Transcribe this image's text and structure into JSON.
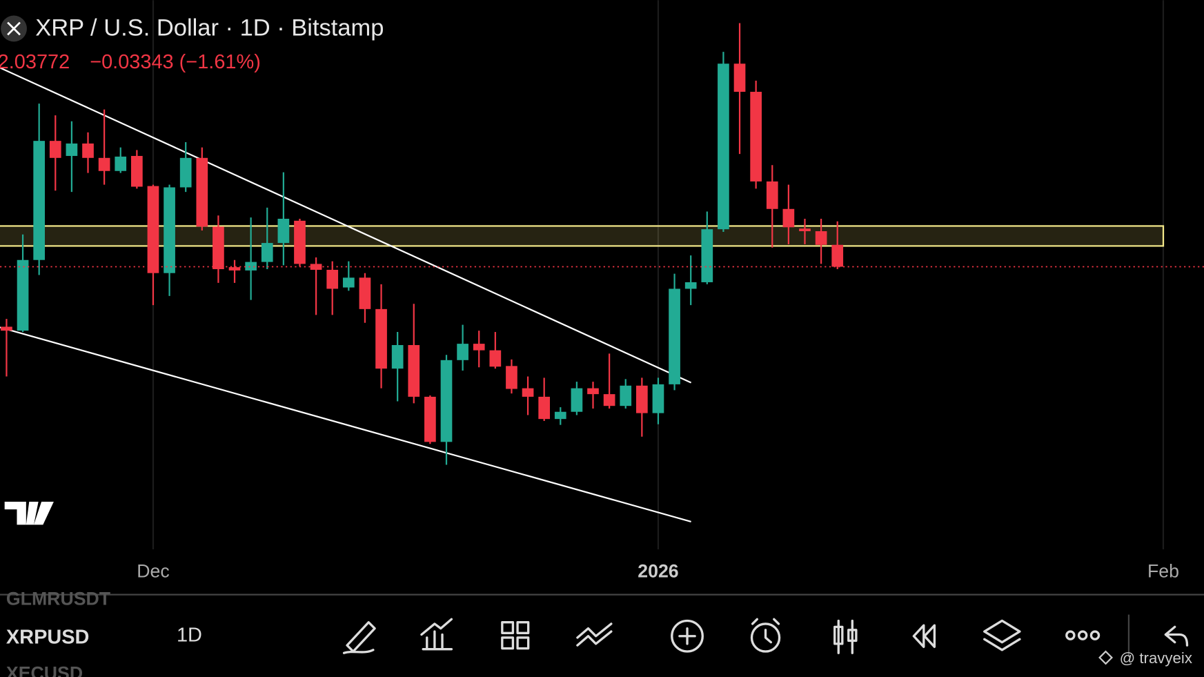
{
  "header": {
    "title": "XRP / U.S. Dollar · 1D · Bitstamp",
    "change": "−0.03343 (−1.61%)"
  },
  "chart_data": {
    "type": "candlestick",
    "up_color": "#22ab94",
    "down_color": "#f23645",
    "open": [
      1.946,
      1.94,
      2.048,
      2.23,
      2.207,
      2.226,
      2.204,
      2.184,
      2.207,
      2.161,
      2.028,
      2.159,
      2.204,
      2.099,
      2.037,
      2.032,
      2.045,
      2.074,
      2.108,
      2.042,
      2.033,
      2.006,
      2.021,
      1.973,
      1.882,
      1.918,
      1.839,
      1.77,
      1.895,
      1.92,
      1.91,
      1.886,
      1.852,
      1.839,
      1.805,
      1.816,
      1.852,
      1.843,
      1.825,
      1.856,
      1.814,
      1.858,
      2.004,
      2.014,
      2.095,
      2.348,
      2.305,
      2.168,
      2.126,
      2.096,
      2.092,
      2.07115
    ],
    "high": [
      1.958,
      2.087,
      2.287,
      2.269,
      2.26,
      2.243,
      2.278,
      2.22,
      2.216,
      2.163,
      2.163,
      2.228,
      2.22,
      2.116,
      2.048,
      2.113,
      2.128,
      2.182,
      2.111,
      2.052,
      2.046,
      2.046,
      2.028,
      2.011,
      1.938,
      1.981,
      1.841,
      1.903,
      1.949,
      1.94,
      1.938,
      1.896,
      1.87,
      1.868,
      1.823,
      1.862,
      1.862,
      1.905,
      1.866,
      1.868,
      1.868,
      2.027,
      2.055,
      2.122,
      2.366,
      2.41,
      2.322,
      2.193,
      2.163,
      2.111,
      2.111,
      2.107
    ],
    "low": [
      1.87,
      1.938,
      2.025,
      2.154,
      2.152,
      2.181,
      2.163,
      2.181,
      2.157,
      1.979,
      1.993,
      2.152,
      2.093,
      2.013,
      2.013,
      1.987,
      2.034,
      2.04,
      2.038,
      1.964,
      1.964,
      2.001,
      1.952,
      1.852,
      1.832,
      1.829,
      1.767,
      1.735,
      1.879,
      1.884,
      1.882,
      1.844,
      1.811,
      1.802,
      1.796,
      1.811,
      1.821,
      1.821,
      1.821,
      1.778,
      1.797,
      1.849,
      1.979,
      2.011,
      2.091,
      2.21,
      2.157,
      2.067,
      2.072,
      2.072,
      2.042,
      2.034
    ],
    "close": [
      1.94,
      2.048,
      2.23,
      2.204,
      2.226,
      2.204,
      2.184,
      2.206,
      2.16,
      2.028,
      2.159,
      2.204,
      2.099,
      2.034,
      2.032,
      2.045,
      2.074,
      2.111,
      2.042,
      2.033,
      2.004,
      2.021,
      1.973,
      1.882,
      1.918,
      1.839,
      1.77,
      1.895,
      1.92,
      1.91,
      1.885,
      1.851,
      1.839,
      1.805,
      1.816,
      1.852,
      1.843,
      1.825,
      1.856,
      1.814,
      1.858,
      2.004,
      2.014,
      2.095,
      2.348,
      2.305,
      2.168,
      2.126,
      2.098,
      2.092,
      2.07115,
      2.03772
    ],
    "xlim": [
      -0.4,
      73.5
    ],
    "ylim": [
      1.6,
      2.445
    ],
    "xticks": [
      {
        "value": 9,
        "label": "Dec"
      },
      {
        "value": 40,
        "label": "2026"
      },
      {
        "value": 71,
        "label": "Feb"
      }
    ]
  },
  "toolbar": {
    "symbols": [
      "GLMRUSDT",
      "XRPUSD",
      "XECUSD"
    ],
    "interval": "1D"
  },
  "watermark": "@ travyeix"
}
